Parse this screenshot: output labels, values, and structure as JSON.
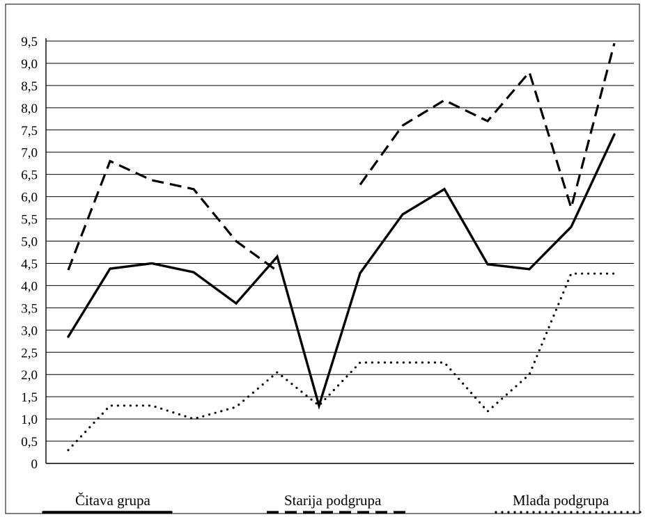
{
  "chart_data": {
    "type": "line",
    "title": "",
    "xlabel": "",
    "ylabel": "",
    "ylim": [
      0,
      9.5
    ],
    "y_ticks": [
      {
        "value": 0,
        "label": "0"
      },
      {
        "value": 0.5,
        "label": "0,5"
      },
      {
        "value": 1.0,
        "label": "1,0"
      },
      {
        "value": 1.5,
        "label": "1,5"
      },
      {
        "value": 2.0,
        "label": "2,0"
      },
      {
        "value": 2.5,
        "label": "2,5"
      },
      {
        "value": 3.0,
        "label": "3,0"
      },
      {
        "value": 3.5,
        "label": "3,5"
      },
      {
        "value": 4.0,
        "label": "4,0"
      },
      {
        "value": 4.5,
        "label": "4,5"
      },
      {
        "value": 5.0,
        "label": "5,0"
      },
      {
        "value": 5.5,
        "label": "5,5"
      },
      {
        "value": 6.0,
        "label": "6,0"
      },
      {
        "value": 6.5,
        "label": "6,5"
      },
      {
        "value": 7.0,
        "label": "7,0"
      },
      {
        "value": 7.5,
        "label": "7,5"
      },
      {
        "value": 8.0,
        "label": "8,0"
      },
      {
        "value": 8.5,
        "label": "8,5"
      },
      {
        "value": 9.0,
        "label": "9,0"
      },
      {
        "value": 9.5,
        "label": "9,5"
      }
    ],
    "grid": true,
    "x": [
      1,
      2,
      3,
      4,
      5,
      6,
      7,
      8,
      9,
      10,
      11,
      12,
      13,
      14
    ],
    "legend_position": "bottom",
    "series": [
      {
        "name": "Čitava grupa",
        "style": "solid",
        "color": "#000000",
        "values": [
          2.85,
          4.38,
          4.5,
          4.3,
          3.6,
          4.65,
          1.3,
          4.28,
          5.6,
          6.17,
          4.48,
          4.37,
          5.32,
          7.4
        ]
      },
      {
        "name": "Starija podgrupa",
        "style": "dashed",
        "color": "#000000",
        "values": [
          4.35,
          6.8,
          6.37,
          6.17,
          5.0,
          4.33,
          null,
          6.27,
          7.6,
          8.17,
          7.7,
          8.8,
          5.75,
          9.45
        ]
      },
      {
        "name": "Mlađa podgrupa",
        "style": "dotted",
        "color": "#000000",
        "values": [
          0.3,
          1.3,
          1.3,
          1.0,
          1.27,
          2.05,
          1.3,
          2.27,
          2.27,
          2.27,
          1.17,
          2.0,
          4.27,
          4.27
        ]
      }
    ]
  }
}
